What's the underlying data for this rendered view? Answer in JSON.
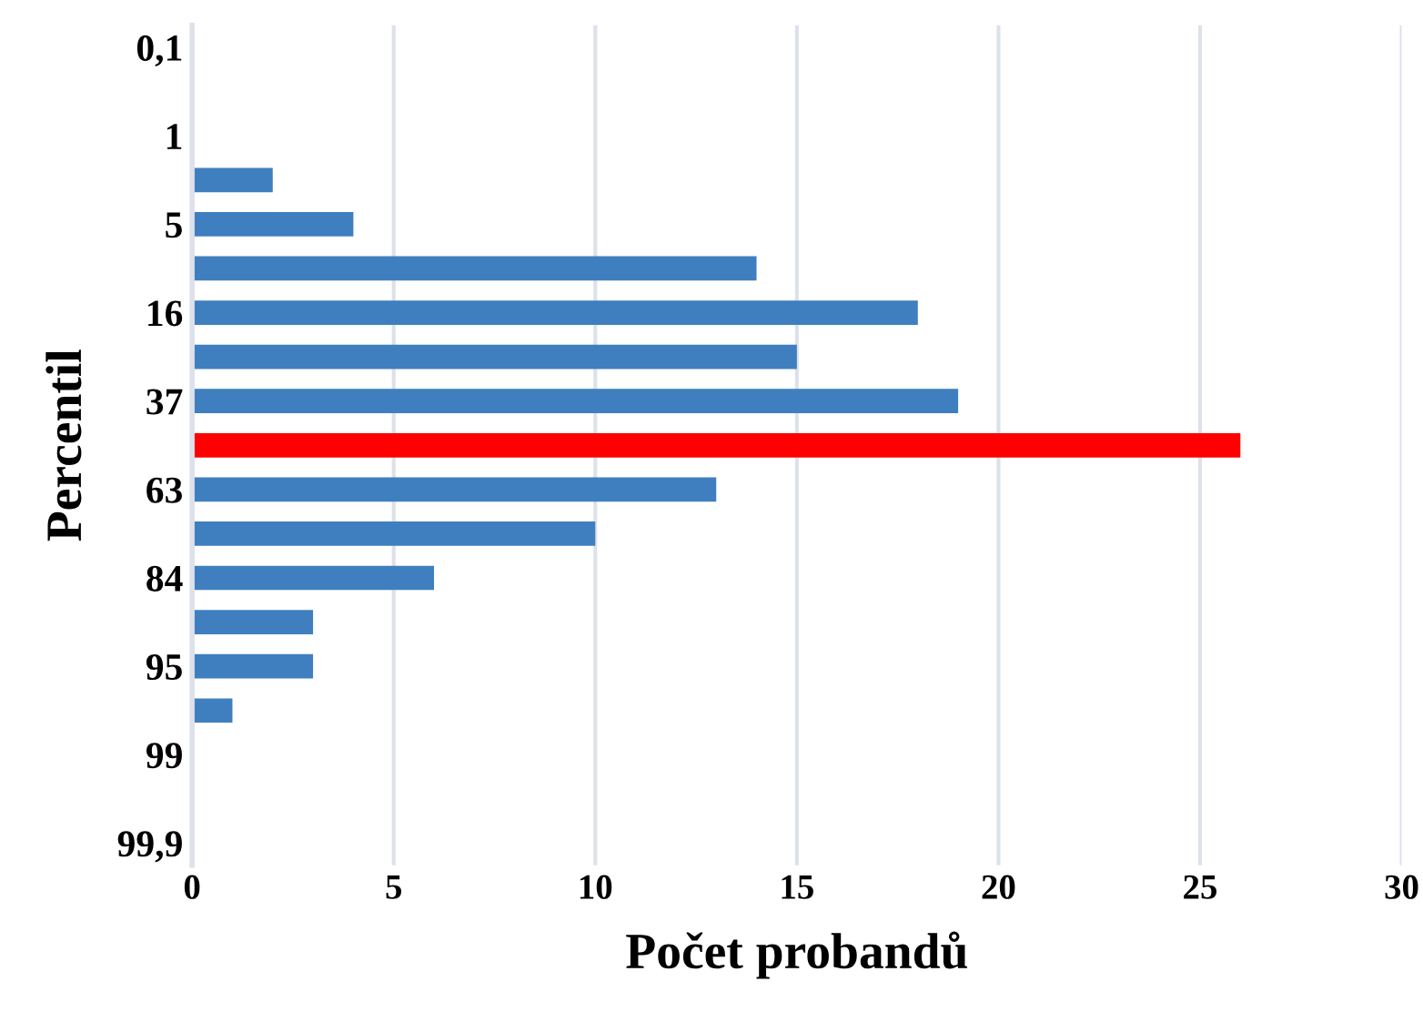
{
  "chart_data": {
    "type": "bar",
    "orientation": "horizontal",
    "xlabel": "Počet probandů",
    "ylabel": "Percentil",
    "categories": [
      "0,1",
      null,
      "1",
      null,
      "5",
      null,
      "16",
      null,
      "37",
      null,
      "63",
      null,
      "84",
      null,
      "95",
      null,
      "99",
      null,
      "99,9"
    ],
    "values": [
      0,
      0,
      0,
      2,
      4,
      14,
      18,
      15,
      19,
      26,
      13,
      10,
      6,
      3,
      3,
      1,
      0,
      0,
      0
    ],
    "colors": [
      "#3f7fbf",
      "#3f7fbf",
      "#3f7fbf",
      "#3f7fbf",
      "#3f7fbf",
      "#3f7fbf",
      "#3f7fbf",
      "#3f7fbf",
      "#3f7fbf",
      "#ff0000",
      "#3f7fbf",
      "#3f7fbf",
      "#3f7fbf",
      "#3f7fbf",
      "#3f7fbf",
      "#3f7fbf",
      "#3f7fbf",
      "#3f7fbf",
      "#3f7fbf"
    ],
    "xlim": [
      0,
      30
    ],
    "xticks": [
      0,
      5,
      10,
      15,
      20,
      25,
      30
    ],
    "grid": "x",
    "legend": false
  }
}
